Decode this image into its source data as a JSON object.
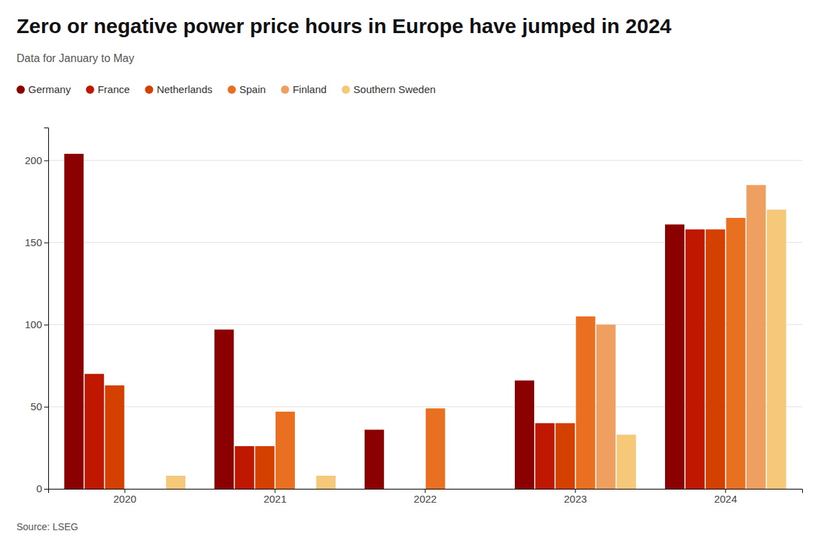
{
  "chart_data": {
    "type": "bar",
    "title": "Zero or negative power price hours in Europe have jumped in 2024",
    "subtitle": "Data for January to May",
    "source": "Source: LSEG",
    "categories": [
      "2020",
      "2021",
      "2022",
      "2023",
      "2024"
    ],
    "series": [
      {
        "name": "Germany",
        "color": "#8B0000",
        "values": [
          204,
          97,
          36,
          66,
          161
        ]
      },
      {
        "name": "France",
        "color": "#C01800",
        "values": [
          70,
          26,
          0,
          40,
          158
        ]
      },
      {
        "name": "Netherlands",
        "color": "#D44000",
        "values": [
          63,
          26,
          0,
          40,
          158
        ]
      },
      {
        "name": "Spain",
        "color": "#E87020",
        "values": [
          0,
          47,
          49,
          105,
          165
        ]
      },
      {
        "name": "Finland",
        "color": "#EFA060",
        "values": [
          0,
          0,
          0,
          100,
          185
        ]
      },
      {
        "name": "Southern Sweden",
        "color": "#F5C87A",
        "values": [
          8,
          8,
          0,
          33,
          170
        ]
      }
    ],
    "ylim": [
      0,
      220
    ],
    "yticks": [
      0,
      50,
      100,
      150,
      200
    ],
    "grid": true,
    "legend": "top-left"
  }
}
